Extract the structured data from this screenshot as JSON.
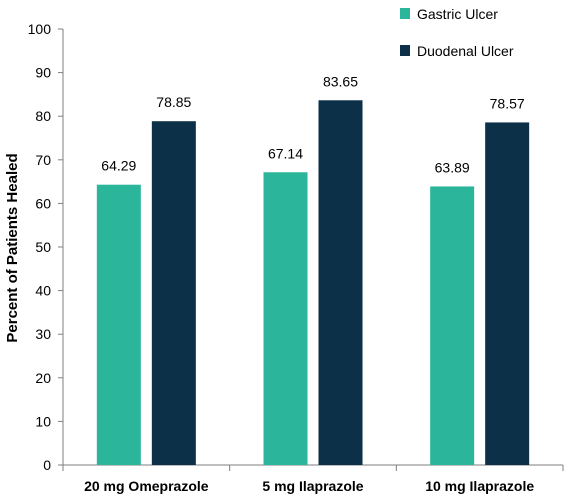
{
  "chart_data": {
    "type": "bar",
    "categories": [
      "20 mg Omeprazole",
      "5 mg Ilaprazole",
      "10 mg Ilaprazole"
    ],
    "series": [
      {
        "name": "Gastric Ulcer",
        "values": [
          64.29,
          67.14,
          63.89
        ],
        "color": "#2bb59a"
      },
      {
        "name": "Duodenal Ulcer",
        "values": [
          78.85,
          83.65,
          78.57
        ],
        "color": "#0b3048"
      }
    ],
    "value_labels": [
      [
        "64.29",
        "67.14",
        "63.89"
      ],
      [
        "78.85",
        "83.65",
        "78.57"
      ]
    ],
    "title": "",
    "xlabel": "",
    "ylabel": "Percent of Patients Healed",
    "ylim": [
      0,
      100
    ],
    "yticks": [
      0,
      10,
      20,
      30,
      40,
      50,
      60,
      70,
      80,
      90,
      100
    ],
    "grid": false,
    "legend_position": "top-right"
  }
}
